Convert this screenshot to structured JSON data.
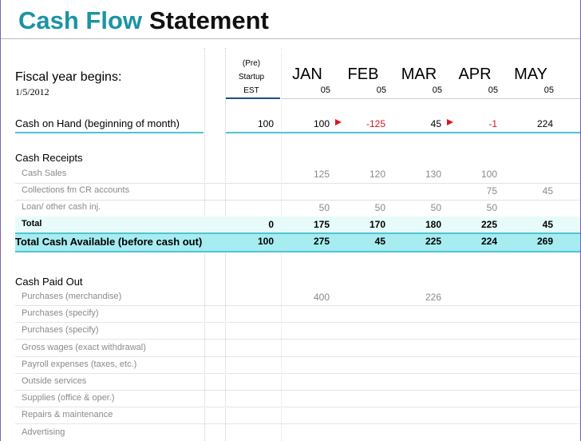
{
  "header": {
    "title_part1": "Cash Flow",
    "title_part2": "Statement",
    "fiscal_label": "Fiscal year begins:",
    "fiscal_date": "1/5/2012"
  },
  "columns": [
    {
      "top": "(Pre)",
      "mid": "Startup",
      "bottom": "EST"
    },
    {
      "name": "JAN",
      "sub": "05"
    },
    {
      "name": "FEB",
      "sub": "05"
    },
    {
      "name": "MAR",
      "sub": "05"
    },
    {
      "name": "APR",
      "sub": "05"
    },
    {
      "name": "MAY",
      "sub": "05"
    }
  ],
  "cash_on_hand": {
    "label": "Cash on Hand (beginning of month)",
    "values": [
      100,
      100,
      -125,
      45,
      -1,
      224
    ]
  },
  "receipts": {
    "heading": "Cash Receipts",
    "rows": [
      {
        "label": "Cash Sales",
        "values": [
          null,
          125,
          120,
          130,
          100,
          null
        ]
      },
      {
        "label": "Collections fm CR accounts",
        "values": [
          null,
          null,
          null,
          null,
          75,
          45
        ]
      },
      {
        "label": "Loan/ other cash inj.",
        "values": [
          null,
          50,
          50,
          50,
          50,
          null
        ]
      }
    ],
    "total": {
      "label": "Total",
      "values": [
        0,
        175,
        170,
        180,
        225,
        45
      ]
    }
  },
  "total_cash_available": {
    "label": "Total Cash Available (before cash out)",
    "values": [
      100,
      275,
      45,
      225,
      224,
      269
    ]
  },
  "paid_out": {
    "heading": "Cash Paid Out",
    "rows": [
      {
        "label": "Purchases (merchandise)",
        "values": [
          null,
          400,
          null,
          226,
          null,
          null
        ]
      },
      {
        "label": "Purchases (specify)"
      },
      {
        "label": "Purchases (specify)"
      },
      {
        "label": "Gross wages (exact withdrawal)"
      },
      {
        "label": "Payroll expenses (taxes, etc.)"
      },
      {
        "label": "Outside services"
      },
      {
        "label": "Supplies (office & oper.)"
      },
      {
        "label": "Repairs & maintenance"
      },
      {
        "label": "Advertising"
      }
    ]
  }
}
